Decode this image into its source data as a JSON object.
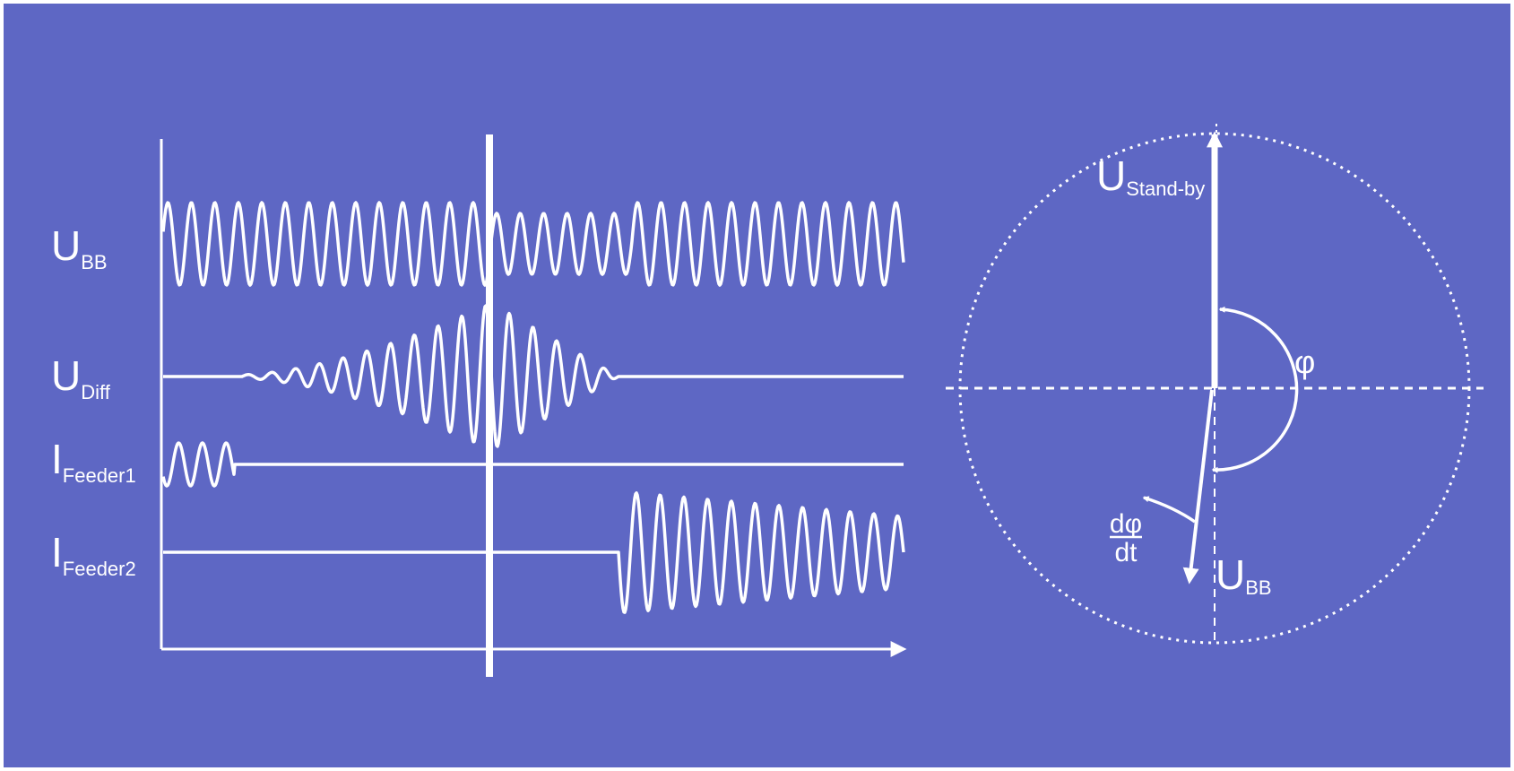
{
  "colors": {
    "background": "#5e67c4",
    "frame": "#ffffff",
    "foreground": "#ffffff"
  },
  "waveforms": {
    "labels": [
      {
        "main": "U",
        "sub": "BB"
      },
      {
        "main": "U",
        "sub": "Diff"
      },
      {
        "main": "I",
        "sub": "Feeder1"
      },
      {
        "main": "I",
        "sub": "Feeder2"
      }
    ]
  },
  "phasor": {
    "standby_label": {
      "main": "U",
      "sub": "Stand-by"
    },
    "busbar_label": {
      "main": "U",
      "sub": "BB"
    },
    "angle_label": "φ",
    "rate_numerator": "dφ",
    "rate_denominator": "dt"
  }
}
